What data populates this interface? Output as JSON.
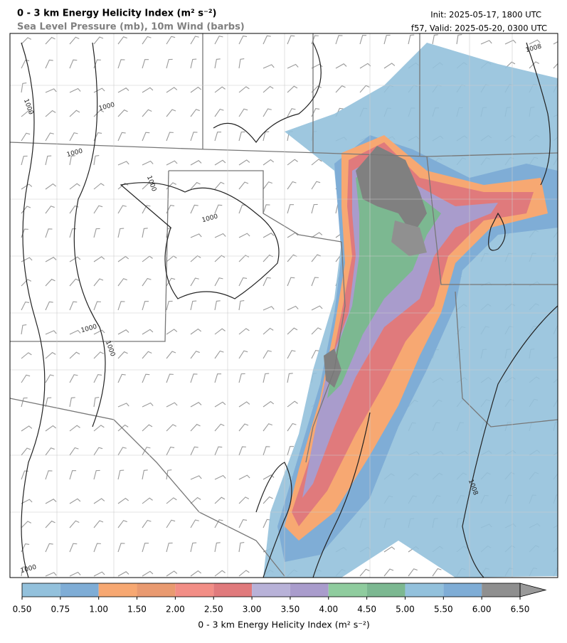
{
  "header": {
    "title": "0 - 3 km Energy Helicity Index (m² s⁻²)",
    "subtitle": "Sea Level Pressure (mb), 10m Wind (barbs)",
    "init": "Init: 2025-05-17, 1800 UTC",
    "valid": "f57, Valid: 2025-05-20, 0300 UTC"
  },
  "contour_labels": [
    "1000",
    "1000",
    "1000",
    "1000",
    "1000",
    "1000",
    "1000",
    "1000",
    "1008",
    "1008"
  ],
  "colorbar": {
    "label": "0 - 3 km Energy Helicity Index (m² s⁻²)",
    "ticks": [
      {
        "value": 0.5,
        "label": "0.50"
      },
      {
        "value": 0.75,
        "label": "0.75"
      },
      {
        "value": 1,
        "label": "1.00"
      },
      {
        "value": 1.5,
        "label": "1.50"
      },
      {
        "value": 2,
        "label": "2.00"
      },
      {
        "value": 2.5,
        "label": "2.50"
      },
      {
        "value": 3,
        "label": "3.00"
      },
      {
        "value": 3.5,
        "label": "3.50"
      },
      {
        "value": 4,
        "label": "4.00"
      },
      {
        "value": 4.5,
        "label": "4.50"
      },
      {
        "value": 5,
        "label": "5.00"
      },
      {
        "value": 5.5,
        "label": "5.50"
      },
      {
        "value": 6,
        "label": "6.00"
      },
      {
        "value": 6.5,
        "label": "6.50"
      }
    ],
    "colors": [
      "#93c1dc",
      "#7fadd6",
      "#f7a872",
      "#e99a70",
      "#f28e86",
      "#e07a7c",
      "#b8b2d8",
      "#a99ccc",
      "#8fcc9e",
      "#7cb891",
      "#93c1dc",
      "#7fadd6",
      "#8f8f8f"
    ],
    "extend_color": "#999999"
  }
}
